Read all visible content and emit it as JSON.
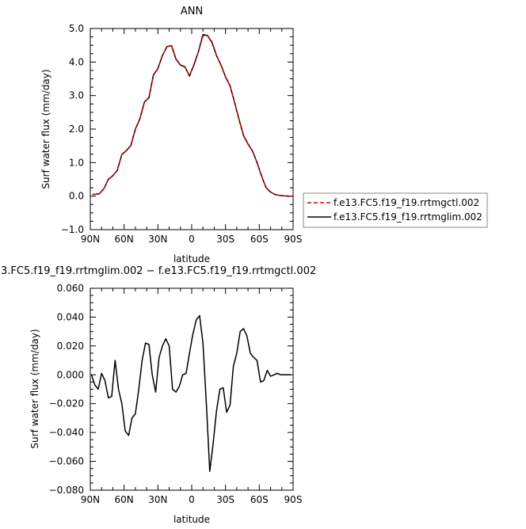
{
  "chart_data": [
    {
      "type": "line",
      "title": "ANN",
      "xlabel": "latitude",
      "ylabel": "Surf water flux (mm/day)",
      "xlim": [
        90,
        -90
      ],
      "ylim": [
        -1.0,
        5.0
      ],
      "x_ticks": [
        90,
        60,
        30,
        0,
        -30,
        -60,
        -90
      ],
      "x_tick_labels": [
        "90N",
        "60N",
        "30N",
        "0",
        "30S",
        "60S",
        "90S"
      ],
      "y_ticks": [
        -1.0,
        0.0,
        1.0,
        2.0,
        3.0,
        4.0,
        5.0
      ],
      "y_tick_labels": [
        "−1.0",
        "0.0",
        "1.0",
        "2.0",
        "3.0",
        "4.0",
        "5.0"
      ],
      "grid": false,
      "legend_position": "right",
      "x": [
        88,
        82,
        78,
        74,
        70,
        66,
        62,
        58,
        54,
        50,
        46,
        42,
        38,
        34,
        30,
        26,
        22,
        18,
        14,
        10,
        6,
        2,
        -2,
        -6,
        -10,
        -14,
        -18,
        -22,
        -26,
        -30,
        -34,
        -38,
        -42,
        -46,
        -50,
        -54,
        -58,
        -62,
        -66,
        -70,
        -74,
        -78,
        -82,
        -86,
        -89
      ],
      "series": [
        {
          "name": "f.e13.FC5.f19_f19.rrtmgctl.002",
          "color": "#cc0000",
          "dash": "dashed",
          "values": [
            0.05,
            0.07,
            0.22,
            0.5,
            0.6,
            0.78,
            1.25,
            1.35,
            1.5,
            2.0,
            2.3,
            2.8,
            2.95,
            3.6,
            3.8,
            4.2,
            4.45,
            4.5,
            4.1,
            3.9,
            3.85,
            3.6,
            3.9,
            4.3,
            4.78,
            4.8,
            4.6,
            4.2,
            3.9,
            3.55,
            3.3,
            2.8,
            2.3,
            1.8,
            1.55,
            1.35,
            1.0,
            0.6,
            0.25,
            0.12,
            0.05,
            0.02,
            0.01,
            0.0,
            0.0
          ]
        },
        {
          "name": "f.e13.FC5.f19_f19.rrtmglim.002",
          "color": "#000000",
          "dash": "solid",
          "values": [
            0.05,
            0.07,
            0.22,
            0.5,
            0.61,
            0.77,
            1.24,
            1.36,
            1.51,
            2.0,
            2.31,
            2.81,
            2.93,
            3.61,
            3.81,
            4.19,
            4.46,
            4.49,
            4.09,
            3.91,
            3.86,
            3.58,
            3.92,
            4.31,
            4.82,
            4.79,
            4.58,
            4.19,
            3.91,
            3.56,
            3.29,
            2.81,
            2.29,
            1.81,
            1.56,
            1.34,
            1.0,
            0.6,
            0.25,
            0.12,
            0.05,
            0.02,
            0.01,
            0.0,
            0.0
          ]
        }
      ]
    },
    {
      "type": "line",
      "title": "3.FC5.f19_f19.rrtmglim.002 − f.e13.FC5.f19_f19.rrtmgctl.002",
      "xlabel": "latitude",
      "ylabel": "Surf water flux (mm/day)",
      "xlim": [
        90,
        -90
      ],
      "ylim": [
        -0.08,
        0.06
      ],
      "x_ticks": [
        90,
        60,
        30,
        0,
        -30,
        -60,
        -90
      ],
      "x_tick_labels": [
        "90N",
        "60N",
        "30N",
        "0",
        "30S",
        "60S",
        "90S"
      ],
      "y_ticks": [
        -0.08,
        -0.06,
        -0.04,
        -0.02,
        0.0,
        0.02,
        0.04,
        0.06
      ],
      "y_tick_labels": [
        "−0.080",
        "−0.060",
        "−0.040",
        "−0.020",
        "0.000",
        "0.020",
        "0.040",
        "0.060"
      ],
      "grid": false,
      "x": [
        89,
        86,
        83,
        80,
        77,
        74,
        71,
        68,
        65,
        62,
        59,
        56,
        53,
        50,
        47,
        44,
        41,
        38,
        35,
        32,
        29,
        26,
        23,
        20,
        17,
        14,
        11,
        8,
        5,
        2,
        -1,
        -4,
        -7,
        -10,
        -13,
        -16,
        -19,
        -22,
        -25,
        -28,
        -31,
        -34,
        -37,
        -40,
        -43,
        -46,
        -49,
        -52,
        -55,
        -58,
        -61,
        -64,
        -67,
        -70,
        -73,
        -76,
        -79,
        -82,
        -85,
        -88
      ],
      "series": [
        {
          "name": "",
          "color": "#000000",
          "values": [
            0.0,
            -0.007,
            -0.01,
            0.001,
            -0.004,
            -0.016,
            -0.015,
            0.01,
            -0.01,
            -0.02,
            -0.039,
            -0.042,
            -0.03,
            -0.027,
            -0.01,
            0.01,
            0.022,
            0.021,
            0.0,
            -0.012,
            0.012,
            0.02,
            0.025,
            0.02,
            -0.01,
            -0.012,
            -0.008,
            0.0,
            0.001,
            0.015,
            0.028,
            0.038,
            0.041,
            0.022,
            -0.02,
            -0.067,
            -0.048,
            -0.025,
            -0.01,
            -0.009,
            -0.026,
            -0.021,
            0.006,
            0.015,
            0.03,
            0.032,
            0.027,
            0.015,
            0.012,
            0.01,
            -0.005,
            -0.004,
            0.003,
            -0.001,
            0.0,
            0.001,
            0.0,
            0.0,
            0.0,
            0.0
          ]
        }
      ]
    }
  ]
}
